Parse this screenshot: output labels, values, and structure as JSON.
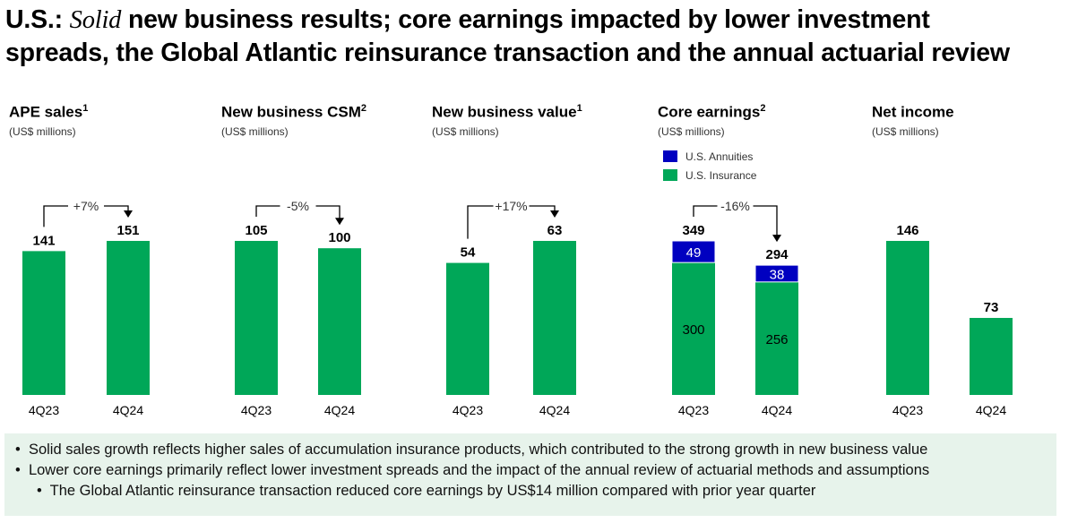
{
  "title": {
    "prefix": "U.S.:",
    "italic": "Solid",
    "rest1": " new business results; core earnings impacted by lower investment",
    "line2": "spreads, the Global Atlantic reinsurance transaction and the annual actuarial review"
  },
  "colors": {
    "green": "#00a758",
    "blue": "#0000c0",
    "notes_bg": "#e7f3eb"
  },
  "chart_data": [
    {
      "type": "bar",
      "title": "APE sales",
      "footnote": "1",
      "subtitle": "(US$ millions)",
      "categories": [
        "4Q23",
        "4Q24"
      ],
      "values": [
        141,
        151
      ],
      "change": "+7%"
    },
    {
      "type": "bar",
      "title": "New business CSM",
      "footnote": "2",
      "subtitle": "(US$ millions)",
      "categories": [
        "4Q23",
        "4Q24"
      ],
      "values": [
        105,
        100
      ],
      "change": "-5%"
    },
    {
      "type": "bar",
      "title": "New business value",
      "footnote": "1",
      "subtitle": "(US$ millions)",
      "categories": [
        "4Q23",
        "4Q24"
      ],
      "values": [
        54,
        63
      ],
      "change": "+17%"
    },
    {
      "type": "bar",
      "stacked": true,
      "title": "Core earnings",
      "footnote": "2",
      "subtitle": "(US$ millions)",
      "categories": [
        "4Q23",
        "4Q24"
      ],
      "totals": [
        349,
        294
      ],
      "change": "-16%",
      "series": [
        {
          "name": "U.S. Insurance",
          "values": [
            300,
            256
          ]
        },
        {
          "name": "U.S. Annuities",
          "values": [
            49,
            38
          ]
        }
      ]
    },
    {
      "type": "bar",
      "title": "Net income",
      "footnote": "",
      "subtitle": "(US$ millions)",
      "categories": [
        "4Q23",
        "4Q24"
      ],
      "values": [
        146,
        73
      ],
      "change": ""
    }
  ],
  "notes": [
    "Solid sales growth reflects higher sales of accumulation insurance products, which contributed to the strong growth in new business value",
    "Lower core earnings primarily reflect lower investment spreads and the impact of the annual review of actuarial methods and assumptions",
    "The Global Atlantic reinsurance transaction reduced core earnings by US$14 million compared with prior year quarter"
  ],
  "bullet": "•"
}
